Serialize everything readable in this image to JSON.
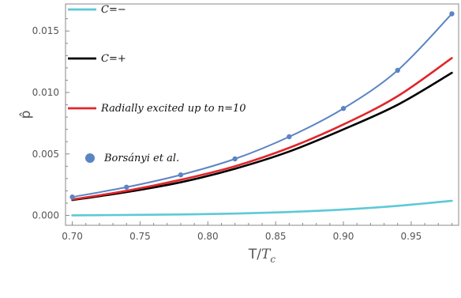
{
  "chart_data": {
    "type": "line",
    "xlabel": "T/",
    "xlabel_sub_base": "T",
    "xlabel_sub": "c",
    "ylabel": "p̂",
    "xlim": [
      0.695,
      0.985
    ],
    "ylim": [
      -0.0008,
      0.0172
    ],
    "xticks": [
      0.7,
      0.75,
      0.8,
      0.85,
      0.9,
      0.95
    ],
    "xtick_labels": [
      "0.70",
      "0.75",
      "0.80",
      "0.85",
      "0.90",
      "0.95"
    ],
    "yticks": [
      0.0,
      0.005,
      0.01,
      0.015
    ],
    "ytick_labels": [
      "0.000",
      "0.005",
      "0.010",
      "0.015"
    ],
    "legend_position": "left",
    "series": [
      {
        "name": "C=−",
        "kind": "line",
        "color": "#5ec9d6",
        "x": [
          0.7,
          0.74,
          0.78,
          0.82,
          0.86,
          0.9,
          0.94,
          0.98
        ],
        "y": [
          1e-05,
          4e-05,
          8e-05,
          0.00015,
          0.00028,
          0.00048,
          0.00078,
          0.00119
        ]
      },
      {
        "name": "C=+",
        "kind": "line",
        "color": "#000000",
        "x": [
          0.7,
          0.74,
          0.78,
          0.82,
          0.86,
          0.9,
          0.94,
          0.98
        ],
        "y": [
          0.00125,
          0.0019,
          0.0027,
          0.0038,
          0.0052,
          0.007,
          0.009,
          0.0116
        ]
      },
      {
        "name": "Radially excited up to n=10",
        "kind": "line",
        "color": "#e0262b",
        "x": [
          0.7,
          0.74,
          0.78,
          0.82,
          0.86,
          0.9,
          0.94,
          0.98
        ],
        "y": [
          0.0013,
          0.002,
          0.0029,
          0.004,
          0.0055,
          0.0074,
          0.0097,
          0.0128
        ]
      },
      {
        "name": "Borsányi et al.",
        "kind": "points_with_curve",
        "color": "#5b84c4",
        "x": [
          0.7,
          0.74,
          0.78,
          0.82,
          0.86,
          0.9,
          0.94,
          0.98
        ],
        "y": [
          0.0015,
          0.0023,
          0.0033,
          0.0046,
          0.0064,
          0.0087,
          0.0118,
          0.0164
        ]
      }
    ]
  }
}
